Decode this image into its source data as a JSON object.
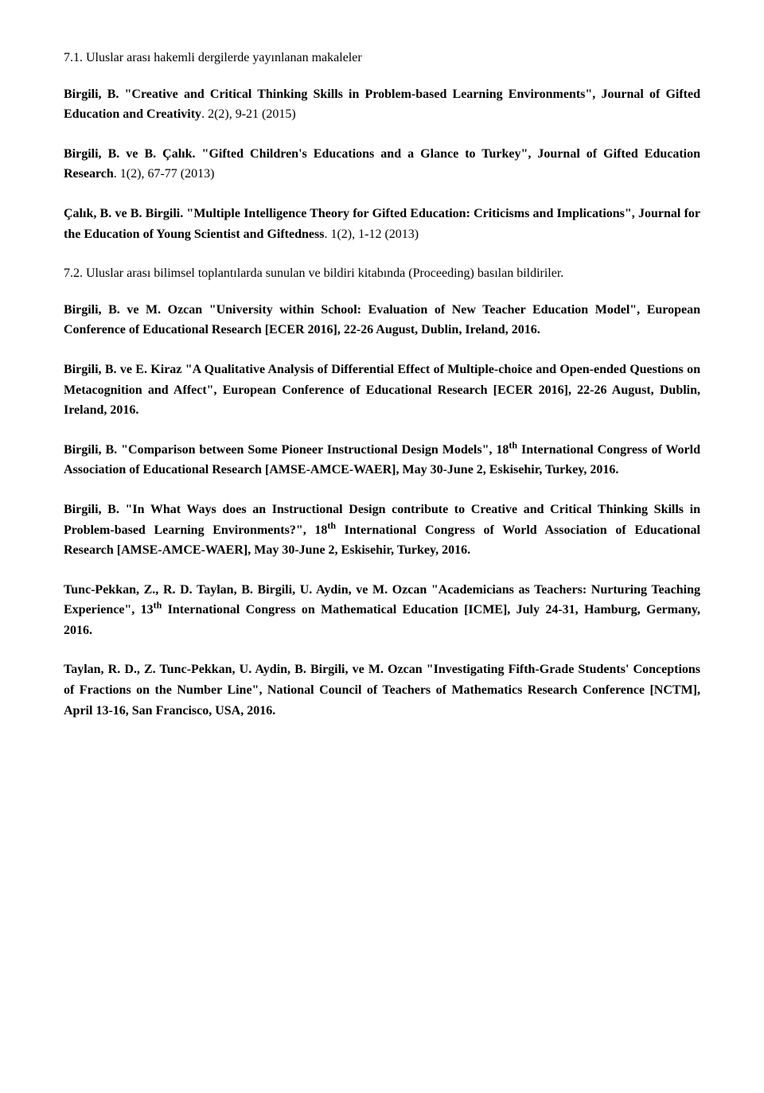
{
  "section71": {
    "title": "7.1. Uluslar arası hakemli dergilerde yayınlanan makaleler",
    "entries": [
      {
        "authors": "Birgili, B.",
        "text": " \"Creative and Critical Thinking Skills in Problem-based Learning Environments\", Journal of Gifted Education and Creativity",
        "suffix": ". 2(2), 9-21 (2015)"
      },
      {
        "authors": "Birgili, B. ve B. Çalık.",
        "text": " \"Gifted Children's Educations and a Glance to Turkey\", Journal of Gifted Education Research",
        "suffix": ". 1(2), 67-77 (2013)"
      },
      {
        "authors": "Çalık, B. ve B. Birgili.",
        "text": " \"Multiple Intelligence Theory for Gifted Education: Criticisms and Implications\", Journal for the Education of Young Scientist and Giftedness",
        "suffix": ". 1(2), 1-12 (2013)"
      }
    ]
  },
  "section72": {
    "title": "7.2. Uluslar arası bilimsel toplantılarda sunulan ve bildiri kitabında (Proceeding) basılan bildiriler.",
    "entries": [
      {
        "authors": "Birgili, B. ve M. Ozcan",
        "text": " \"University within School: Evaluation of New Teacher Education Model\", European Conference of Educational Research [ECER 2016], 22-26 August, Dublin, Ireland, 2016."
      },
      {
        "authors": "Birgili, B. ve E. Kiraz",
        "text": " \"A Qualitative Analysis of Differential Effect of Multiple-choice and Open-ended Questions on Metacognition and Affect\", European Conference of Educational Research [ECER 2016], 22-26 August, Dublin, Ireland, 2016."
      },
      {
        "authors": "Birgili, B.",
        "text_pre": " \"Comparison between Some Pioneer Instructional Design Models\", 18",
        "sup": "th",
        "text_post": " International Congress of World Association of Educational Research [AMSE-AMCE-WAER], May 30-June 2, Eskisehir, Turkey, 2016."
      },
      {
        "authors": "Birgili, B.",
        "text_pre": " \"In What Ways does an Instructional Design contribute to Creative and Critical Thinking Skills in Problem-based Learning Environments?\", 18",
        "sup": "th",
        "text_post": " International Congress of World Association of Educational Research [AMSE-AMCE-WAER], May 30-June 2, Eskisehir, Turkey, 2016."
      },
      {
        "authors": "Tunc-Pekkan, Z., R. D. Taylan, B. Birgili, U. Aydin, ve M. Ozcan",
        "text_pre": " \"Academicians as Teachers: Nurturing Teaching Experience\", 13",
        "sup": "th",
        "text_post": " International Congress on Mathematical Education [ICME], July 24-31, Hamburg, Germany, 2016."
      },
      {
        "authors": "Taylan, R. D., Z. Tunc-Pekkan, U. Aydin, B. Birgili, ve M. Ozcan",
        "text": " \"Investigating Fifth-Grade Students' Conceptions of Fractions on the Number Line\", National Council of Teachers of Mathematics Research Conference [NCTM], April 13-16, San Francisco, USA, 2016."
      }
    ]
  }
}
